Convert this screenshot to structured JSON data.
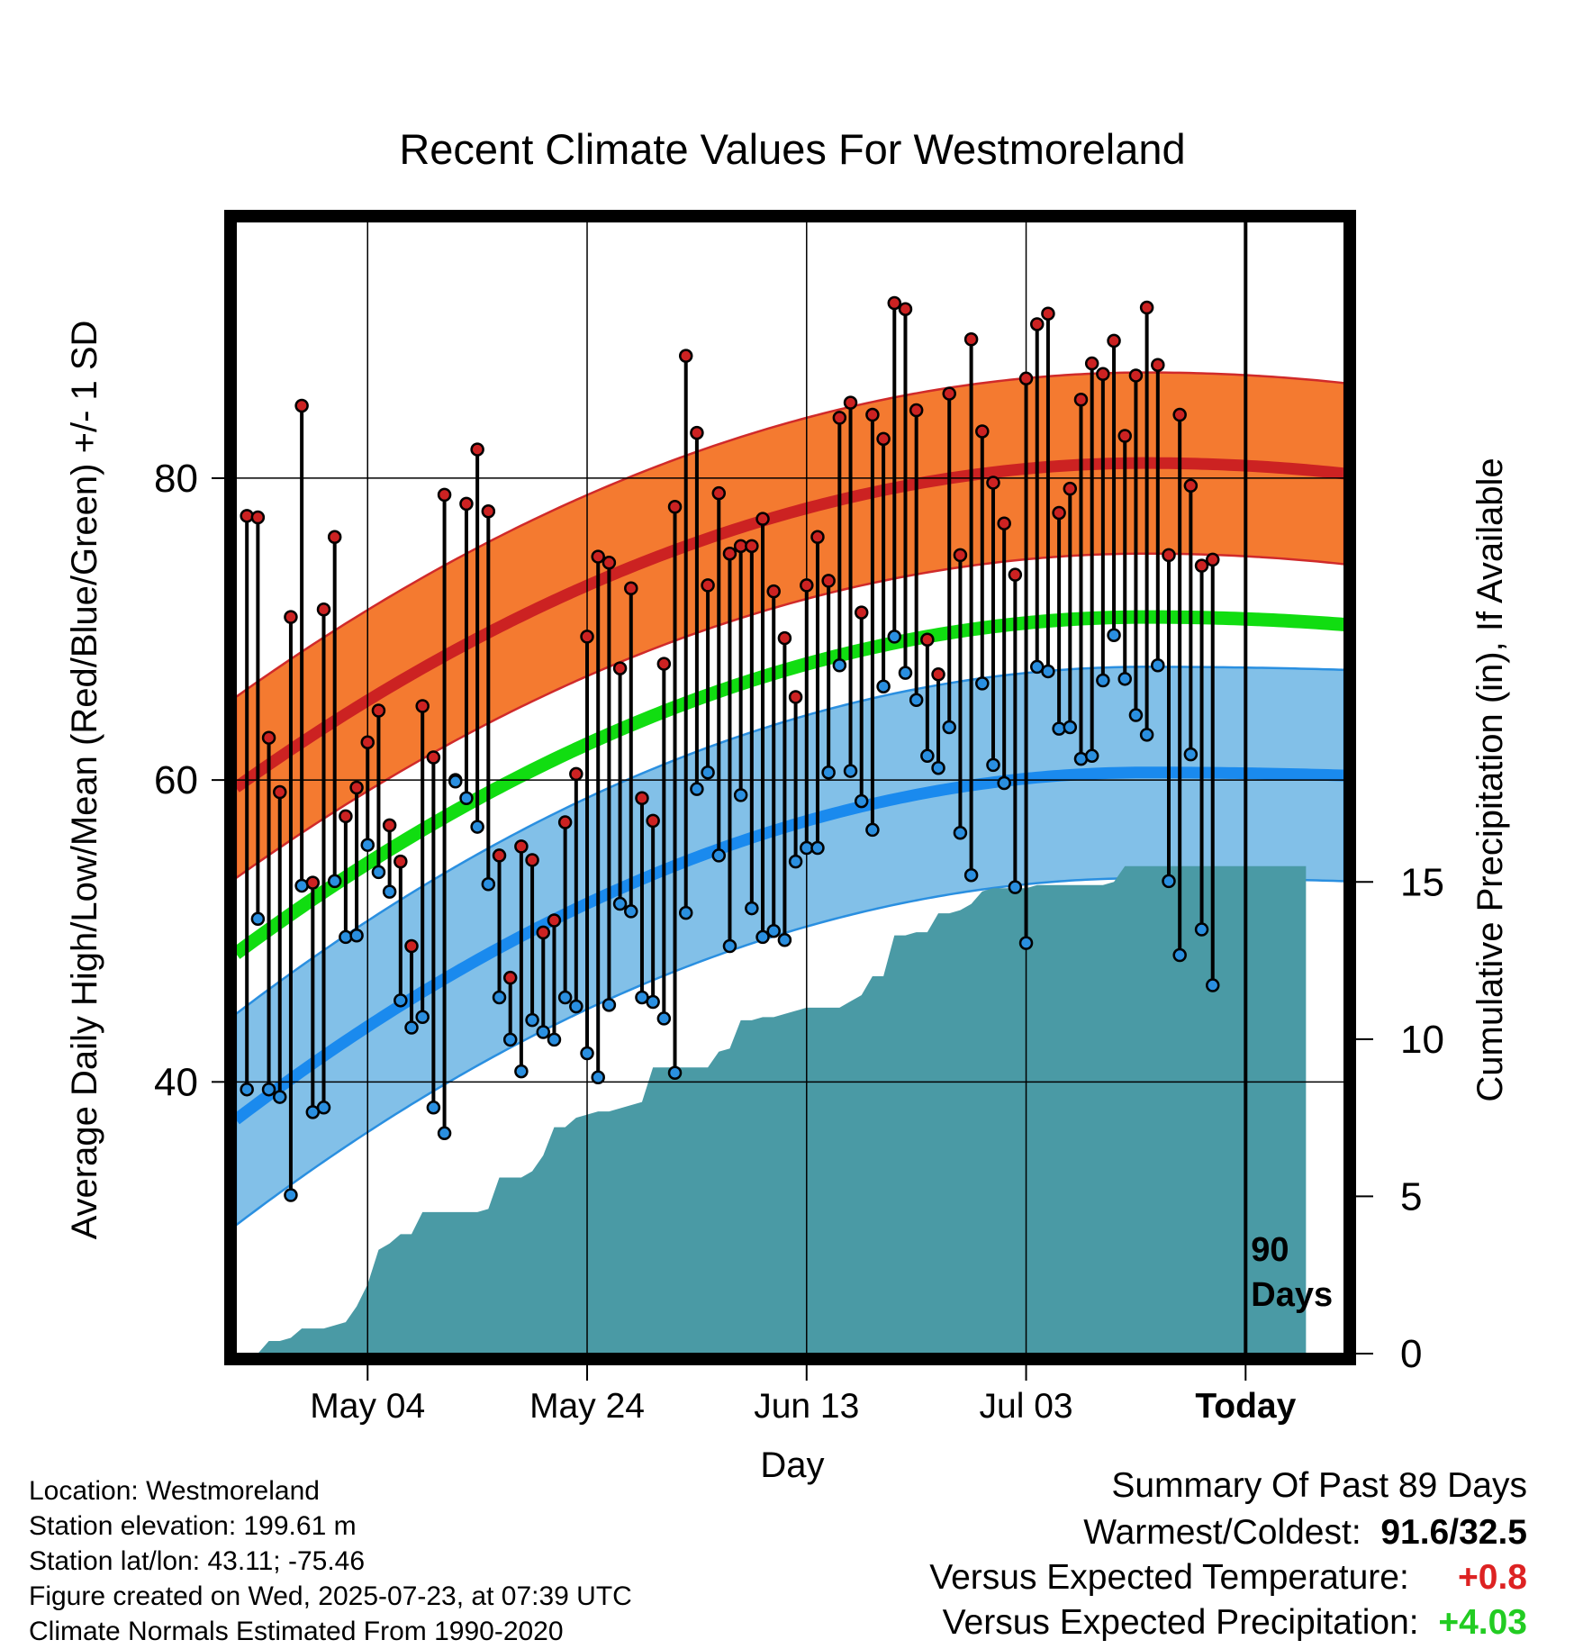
{
  "chart_data": {
    "type": "line",
    "title": "Recent Climate Values For Westmoreland",
    "xlabel": "Day",
    "ylabel": "Average Daily High/Low/Mean (Red/Blue/Green) +/- 1 SD",
    "y2label": "Cumulative Precipitation (in), If Available",
    "x_ticks": [
      "May 04",
      "May 24",
      "Jun 13",
      "Jul 03",
      "Today"
    ],
    "x_tick_day": [
      12,
      32,
      52,
      72,
      92
    ],
    "x_range_days": [
      0,
      101
    ],
    "today_label": "90\nDays",
    "y_ticks": [
      40,
      60,
      80
    ],
    "ylim": [
      22,
      97
    ],
    "y2_ticks": [
      0,
      5,
      10,
      15
    ],
    "y2lim": [
      0,
      36
    ],
    "grid": true,
    "normals": {
      "high_mean": {
        "start": 59.5,
        "peak": 81.0,
        "peak_day": 83,
        "end": 80.3
      },
      "high_sd": 6.0,
      "low_mean": {
        "start": 37.5,
        "peak": 60.5,
        "peak_day": 83,
        "end": 60.3
      },
      "low_sd": 7.0,
      "mean": {
        "start": 48.5,
        "peak": 70.8,
        "peak_day": 83,
        "end": 70.3
      }
    },
    "series": [
      {
        "name": "High",
        "color": "#cc2222",
        "values": [
          77.5,
          77.4,
          62.8,
          59.2,
          70.8,
          84.8,
          53.2,
          71.3,
          76.1,
          57.6,
          59.5,
          62.5,
          64.6,
          57.0,
          54.6,
          49.0,
          64.9,
          61.5,
          78.9,
          60.0,
          78.3,
          81.9,
          77.8,
          55.0,
          46.9,
          55.6,
          54.7,
          49.9,
          50.7,
          57.2,
          60.4,
          69.5,
          74.8,
          74.4,
          67.4,
          72.7,
          58.8,
          57.3,
          67.7,
          78.1,
          88.1,
          83.0,
          72.9,
          79.0,
          75.0,
          75.5,
          75.5,
          77.3,
          72.5,
          69.4,
          65.5,
          72.9,
          76.1,
          73.2,
          84.0,
          85.0,
          71.1,
          84.2,
          82.6,
          91.6,
          91.2,
          84.5,
          69.3,
          67.0,
          85.6,
          74.9,
          89.2,
          83.1,
          79.7,
          77.0,
          73.6,
          86.6,
          90.2,
          90.9,
          77.7,
          79.3,
          85.2,
          87.6,
          86.9,
          89.1,
          82.8,
          86.8,
          91.3,
          87.5,
          74.9,
          84.2,
          79.5,
          74.2,
          74.6
        ]
      },
      {
        "name": "Low",
        "color": "#2a8fe0",
        "values": [
          39.5,
          50.8,
          39.5,
          39.0,
          32.5,
          53.0,
          38.0,
          38.3,
          53.3,
          49.6,
          49.7,
          55.7,
          53.9,
          52.6,
          45.4,
          43.6,
          44.3,
          38.3,
          36.6,
          59.9,
          58.8,
          56.9,
          53.1,
          45.6,
          42.8,
          40.7,
          44.1,
          43.3,
          42.8,
          45.6,
          45.0,
          41.9,
          40.3,
          45.1,
          51.8,
          51.3,
          45.6,
          45.3,
          44.2,
          40.6,
          51.2,
          59.4,
          60.5,
          55.0,
          49.0,
          59.0,
          51.5,
          49.6,
          50.0,
          49.4,
          54.6,
          55.5,
          55.5,
          60.5,
          67.6,
          60.6,
          58.6,
          56.7,
          66.2,
          69.5,
          67.1,
          65.3,
          61.6,
          60.8,
          63.5,
          56.5,
          53.7,
          66.4,
          61.0,
          59.8,
          52.9,
          49.2,
          67.5,
          67.2,
          63.4,
          63.5,
          61.4,
          61.6,
          66.6,
          69.6,
          66.7,
          64.3,
          63.0,
          67.6,
          53.3,
          48.4,
          61.7,
          50.1,
          46.4
        ]
      },
      {
        "name": "Cumulative Precipitation",
        "color": "#4a9aa5",
        "values": [
          0,
          0,
          0.4,
          0.4,
          0.5,
          0.8,
          0.8,
          0.8,
          0.9,
          1.0,
          1.5,
          2.2,
          3.3,
          3.5,
          3.8,
          3.8,
          4.5,
          4.5,
          4.5,
          4.5,
          4.5,
          4.5,
          4.6,
          5.6,
          5.6,
          5.6,
          5.8,
          6.3,
          7.2,
          7.2,
          7.5,
          7.6,
          7.7,
          7.7,
          7.8,
          7.9,
          8.0,
          9.1,
          9.1,
          9.1,
          9.1,
          9.1,
          9.1,
          9.6,
          9.7,
          10.6,
          10.6,
          10.7,
          10.7,
          10.8,
          10.9,
          11.0,
          11.0,
          11.0,
          11.0,
          11.2,
          11.4,
          12.0,
          12.0,
          13.3,
          13.3,
          13.4,
          13.4,
          14.0,
          14.0,
          14.1,
          14.3,
          14.7,
          14.8,
          14.8,
          14.8,
          14.8,
          14.9,
          14.9,
          14.9,
          14.9,
          14.9,
          14.9,
          14.9,
          15.0,
          15.5,
          15.5,
          15.5,
          15.5,
          15.5,
          15.5,
          15.5,
          15.5,
          15.5
        ]
      }
    ]
  },
  "footer": {
    "location": "Location: Westmoreland",
    "elevation": "Station elevation: 199.61 m",
    "latlon": "Station lat/lon: 43.11; -75.46",
    "created": "Figure created on Wed, 2025-07-23, at 07:39 UTC",
    "normals": "Climate Normals Estimated From 1990-2020"
  },
  "summary": {
    "heading": "Summary Of Past 89 Days",
    "warm_cold_label": "Warmest/Coldest:",
    "warm_cold_value": "91.6/32.5",
    "temp_label": "Versus Expected Temperature:",
    "temp_value": "+0.8",
    "temp_color": "#dd2222",
    "precip_label": "Versus Expected Precipitation:",
    "precip_value": "+4.03",
    "precip_color": "#22cc22"
  }
}
